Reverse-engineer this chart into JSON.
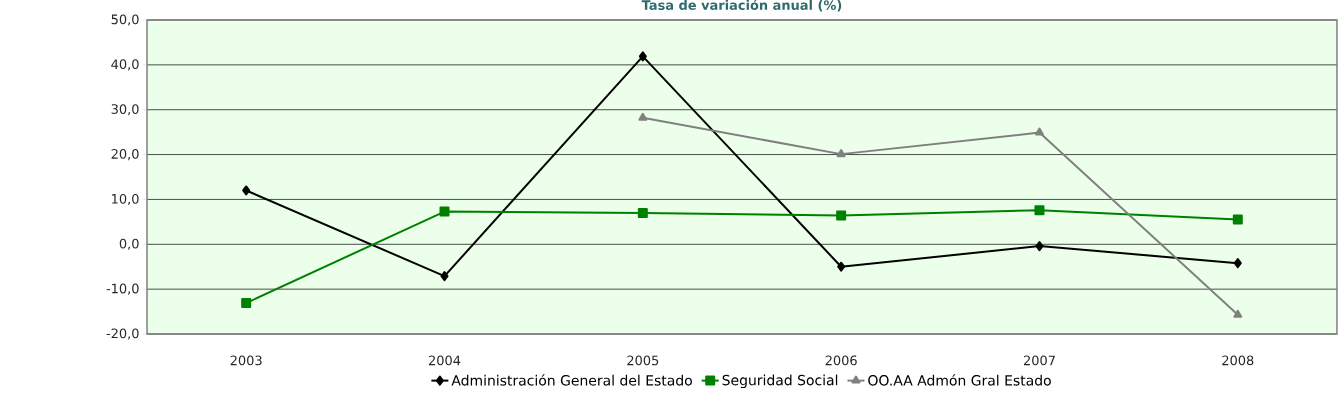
{
  "chart_data": {
    "type": "line",
    "title": "Tasa de variación anual (%)",
    "categories": [
      "2003",
      "2004",
      "2005",
      "2006",
      "2007",
      "2008"
    ],
    "series": [
      {
        "name": "Administración General del Estado",
        "color": "#000000",
        "marker": "diamond",
        "values": [
          12.0,
          -7.1,
          41.9,
          -5.0,
          -0.4,
          -4.2
        ]
      },
      {
        "name": "Seguridad Social",
        "color": "#008000",
        "marker": "square",
        "values": [
          -13.1,
          7.3,
          7.0,
          6.4,
          7.6,
          5.5
        ]
      },
      {
        "name": "OO.AA Admón Gral Estado",
        "color": "#808080",
        "marker": "triangle",
        "values": [
          null,
          null,
          28.2,
          20.1,
          24.9,
          -15.7
        ]
      }
    ],
    "ylim": [
      -20,
      50
    ],
    "yticks": [
      {
        "value": -20,
        "label": "-20,0"
      },
      {
        "value": -10,
        "label": "-10,0"
      },
      {
        "value": 0,
        "label": "0,0"
      },
      {
        "value": 10,
        "label": "10,0"
      },
      {
        "value": 20,
        "label": "20,0"
      },
      {
        "value": 30,
        "label": "30,0"
      },
      {
        "value": 40,
        "label": "40,0"
      },
      {
        "value": 50,
        "label": "50,0"
      }
    ],
    "grid": "y",
    "legend": "bottom",
    "line_style": "solid"
  }
}
